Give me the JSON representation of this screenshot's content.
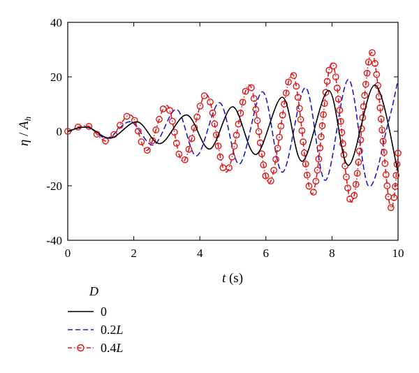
{
  "chart_data": {
    "type": "line",
    "xlabel_var": "t",
    "xlabel_unit": " (s)",
    "ylabel_var": "η",
    "ylabel_sep": " / ",
    "ylabel_var2": "A",
    "ylabel_sub": "h",
    "xlim": [
      0,
      10
    ],
    "ylim": [
      -40,
      40
    ],
    "xticks": [
      0,
      2,
      4,
      6,
      8,
      10
    ],
    "yticks": [
      -40,
      -20,
      0,
      20,
      40
    ],
    "grid": false,
    "legend": {
      "title": "D",
      "placement": "below-left",
      "entries": [
        {
          "text": "0",
          "text_italic_suffix": ""
        },
        {
          "text": "0.2",
          "text_italic_suffix": "L"
        },
        {
          "text": "0.4",
          "text_italic_suffix": "L"
        }
      ]
    },
    "series": [
      {
        "color": "#000000",
        "dash": "solid",
        "marker": "none",
        "x": [
          0,
          0.6,
          1.3,
          2.1,
          2.8,
          3.6,
          4.3,
          5.0,
          5.7,
          6.5,
          7.1,
          7.9,
          8.5,
          9.3,
          10.0
        ],
        "y": [
          0,
          1.5,
          -2.5,
          3.5,
          -4.5,
          6,
          -6.5,
          9,
          -8.5,
          12.5,
          -11,
          15,
          -12.5,
          17,
          -15
        ]
      },
      {
        "color": "#1a1ad0",
        "dash": "dashed",
        "marker": "none",
        "x": [
          0,
          0.6,
          1.2,
          1.9,
          2.6,
          3.3,
          3.9,
          4.6,
          5.2,
          5.9,
          6.5,
          7.2,
          7.8,
          8.5,
          9.1,
          9.7,
          10.0
        ],
        "y": [
          0,
          1.5,
          -2.5,
          3.5,
          -5,
          8,
          -9,
          10.5,
          -12,
          14.5,
          -15,
          16,
          -18,
          19,
          -20,
          3,
          19
        ]
      },
      {
        "color": "#e01818",
        "dash": "dashdot",
        "marker": "circle",
        "x": [
          0,
          0.6,
          1.2,
          1.9,
          2.4,
          3.0,
          3.5,
          4.2,
          4.8,
          5.5,
          6.1,
          6.8,
          7.4,
          8.0,
          8.6,
          9.2,
          9.75,
          10.0
        ],
        "y": [
          0,
          2,
          -3.5,
          6,
          -7,
          9.5,
          -11,
          13.5,
          -15,
          17,
          -19,
          21,
          -23,
          25,
          -26,
          29,
          -27,
          -8
        ]
      }
    ]
  }
}
